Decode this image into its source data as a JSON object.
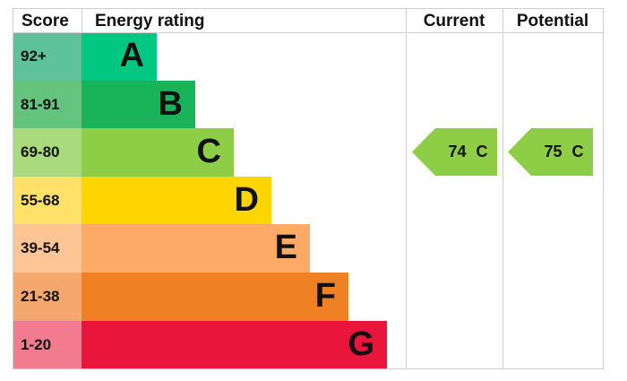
{
  "header": {
    "score": "Score",
    "energy_rating": "Energy rating",
    "current": "Current",
    "potential": "Potential"
  },
  "chart_data": {
    "type": "bar",
    "title": "",
    "bands": [
      {
        "score": "92+",
        "letter": "A",
        "score_color": "#5dc29c",
        "bar_color": "#00c781"
      },
      {
        "score": "81-91",
        "letter": "B",
        "score_color": "#64c47d",
        "bar_color": "#19b459"
      },
      {
        "score": "69-80",
        "letter": "C",
        "score_color": "#a9da7b",
        "bar_color": "#8dce46"
      },
      {
        "score": "55-68",
        "letter": "D",
        "score_color": "#ffe169",
        "bar_color": "#ffd500"
      },
      {
        "score": "39-54",
        "letter": "E",
        "score_color": "#fdc593",
        "bar_color": "#fcaa65"
      },
      {
        "score": "21-38",
        "letter": "F",
        "score_color": "#f4a86d",
        "bar_color": "#ef8023"
      },
      {
        "score": "1-20",
        "letter": "G",
        "score_color": "#f27b8f",
        "bar_color": "#e9153b"
      }
    ],
    "current": {
      "value": 74,
      "band": "C",
      "label": "74 C",
      "color": "#8dce46"
    },
    "potential": {
      "value": 75,
      "band": "C",
      "label": "75 C",
      "color": "#8dce46"
    }
  }
}
